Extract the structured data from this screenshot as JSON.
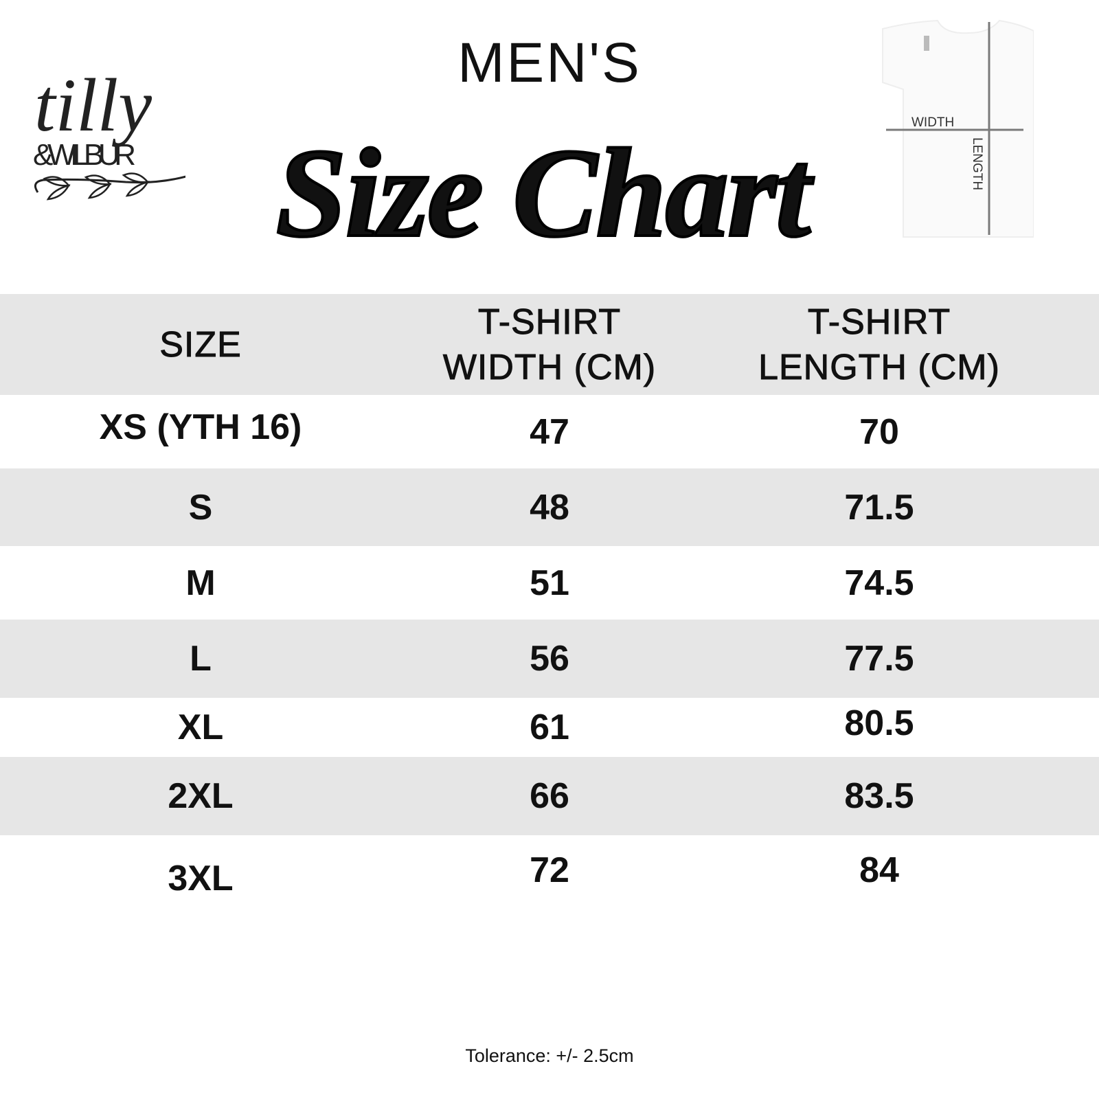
{
  "brand": {
    "logo_text": "tilly & WILBUR"
  },
  "header": {
    "subtitle": "MEN'S",
    "title": "Size Chart"
  },
  "diagram": {
    "width_label": "WIDTH",
    "length_label": "LENGTH"
  },
  "table": {
    "columns": [
      "SIZE",
      "T-SHIRT\nWIDTH (CM)",
      "T-SHIRT\nLENGTH (CM)"
    ],
    "rows": [
      [
        "XS (YTH 16)",
        "47",
        "70"
      ],
      [
        "S",
        "48",
        "71.5"
      ],
      [
        "M",
        "51",
        "74.5"
      ],
      [
        "L",
        "56",
        "77.5"
      ],
      [
        "XL",
        "61",
        "80.5"
      ],
      [
        "2XL",
        "66",
        "83.5"
      ],
      [
        "3XL",
        "72",
        "84"
      ]
    ]
  },
  "footer": {
    "tolerance": "Tolerance: +/- 2.5cm"
  },
  "colors": {
    "row_stripe": "#e6e6e6",
    "guide_line": "#7a7a7a"
  }
}
